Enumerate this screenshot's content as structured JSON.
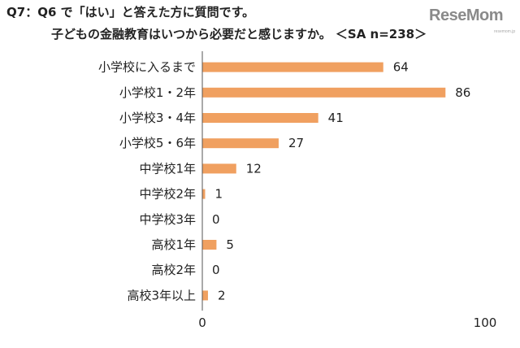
{
  "header": {
    "question_line1": "Q7：Q6 で「はい」と答えた方に質問です。",
    "question_line2": "子どもの金融教育はいつから必要だと感じますか。 ＜SA n=238＞"
  },
  "watermark": {
    "brand": "ReseMom",
    "sub": "resemom.jp"
  },
  "colors": {
    "bar": "#f0a060",
    "axis": "#555555"
  },
  "chart_data": {
    "type": "bar",
    "orientation": "horizontal",
    "categories": [
      "小学校に入るまで",
      "小学校1・2年",
      "小学校3・4年",
      "小学校5・6年",
      "中学校1年",
      "中学校2年",
      "中学校3年",
      "高校1年",
      "高校2年",
      "高校3年以上"
    ],
    "values": [
      64,
      86,
      41,
      27,
      12,
      1,
      0,
      5,
      0,
      2
    ],
    "xlim": [
      0,
      100
    ],
    "xticks": [
      "0",
      "100"
    ],
    "grid": false,
    "legend": "none"
  }
}
